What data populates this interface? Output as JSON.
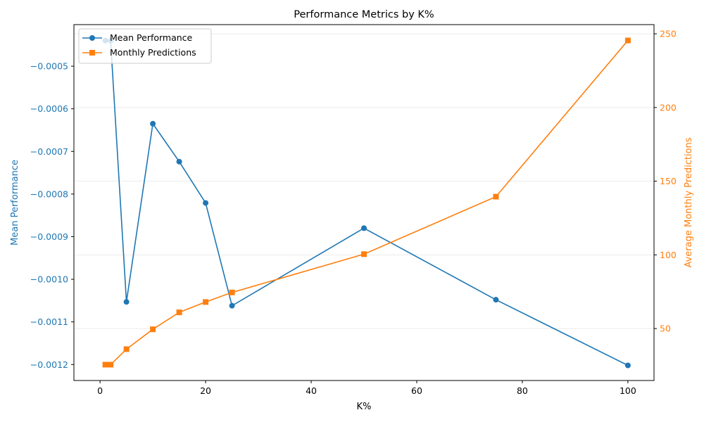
{
  "chart_data": {
    "type": "line",
    "title": "Performance Metrics by K%",
    "xlabel": "K%",
    "ylabel_left": "Mean Performance",
    "ylabel_right": "Average Monthly Predictions",
    "xlim": [
      -4.95,
      104.95
    ],
    "ylim_left": [
      -0.0012375,
      -0.0004025
    ],
    "ylim_right": [
      14.75,
      256.25
    ],
    "x_ticks": [
      0,
      20,
      40,
      60,
      80,
      100
    ],
    "x_tick_labels": [
      "0",
      "20",
      "40",
      "60",
      "80",
      "100"
    ],
    "y_left_ticks": [
      -0.0005,
      -0.0006,
      -0.0007,
      -0.0008,
      -0.0009,
      -0.001,
      -0.0011,
      -0.0012
    ],
    "y_left_tick_labels": [
      "−0.0005",
      "−0.0006",
      "−0.0007",
      "−0.0008",
      "−0.0009",
      "−0.0010",
      "−0.0011",
      "−0.0012"
    ],
    "y_right_ticks": [
      50,
      100,
      150,
      200,
      250
    ],
    "y_right_tick_labels": [
      "50",
      "100",
      "150",
      "200",
      "250"
    ],
    "grid": "horizontal, right axis",
    "legend_position": "top-left",
    "series": [
      {
        "name": "Mean Performance",
        "axis": "left",
        "color": "#1f77b4",
        "marker": "circle",
        "x": [
          1,
          2,
          5,
          10,
          15,
          20,
          25,
          50,
          75,
          100
        ],
        "y": [
          -0.00044,
          -0.00044,
          -0.001053,
          -0.000635,
          -0.000724,
          -0.000821,
          -0.001062,
          -0.00088,
          -0.001048,
          -0.001202
        ]
      },
      {
        "name": "Monthly Predictions",
        "axis": "right",
        "color": "#ff7f0e",
        "marker": "square",
        "x": [
          1,
          2,
          5,
          10,
          15,
          20,
          25,
          50,
          75,
          100
        ],
        "y": [
          25.5,
          25.5,
          36,
          49.5,
          61,
          68,
          74.5,
          100.5,
          139.5,
          245.5
        ]
      }
    ]
  }
}
